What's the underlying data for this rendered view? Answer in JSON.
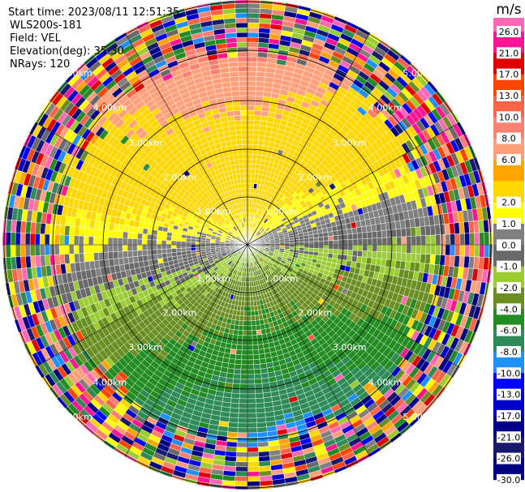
{
  "header": {
    "start_time": "Start time: 2023/08/11 12:51:35",
    "instrument": "WLS200s-181",
    "field": "Field: VEL",
    "elevation": "Elevation(deg): 35.30",
    "nrays": "NRays: 120"
  },
  "range_rings": {
    "labels": [
      "1.00km",
      "2.00km",
      "3.00km",
      "4.00km",
      "5.00km"
    ]
  },
  "colorbar": {
    "unit": "m/s",
    "ticks": [
      {
        "value": 26,
        "label": "26.0"
      },
      {
        "value": 21,
        "label": "21.0"
      },
      {
        "value": 17,
        "label": "17.0"
      },
      {
        "value": 13,
        "label": "13.0"
      },
      {
        "value": 10,
        "label": "10.0"
      },
      {
        "value": 8,
        "label": "8.0"
      },
      {
        "value": 6,
        "label": "6.0"
      },
      null,
      {
        "value": 2,
        "label": "2.0"
      },
      {
        "value": 1,
        "label": "1.0"
      },
      {
        "value": 0,
        "label": "0.0"
      },
      {
        "value": -1,
        "label": "-1.0"
      },
      {
        "value": -2,
        "label": "-2.0"
      },
      {
        "value": -4,
        "label": "-4.0"
      },
      {
        "value": -6,
        "label": "-6.0"
      },
      {
        "value": -8,
        "label": "-8.0"
      },
      {
        "value": -10,
        "label": "-10.0"
      },
      {
        "value": -13,
        "label": "-13.0"
      },
      {
        "value": -17,
        "label": "-17.0"
      },
      {
        "value": -21,
        "label": "-21.0"
      },
      {
        "value": -26,
        "label": "-26.0"
      },
      {
        "value": -30,
        "label": "-30.0"
      }
    ],
    "colors": [
      "#ff69b4",
      "#ff1493",
      "#e00000",
      "#ff4500",
      "#ff6347",
      "#fa8072",
      "#ffa07a",
      "#ffa500",
      "#ffd700",
      "#ffff00",
      "#808080",
      "#696969",
      "#9acd32",
      "#6b8e23",
      "#228b22",
      "#2e8b57",
      "#1e90ff",
      "#0000ff",
      "#0000cd",
      "#00008b",
      "#191970",
      "#000080"
    ]
  }
}
